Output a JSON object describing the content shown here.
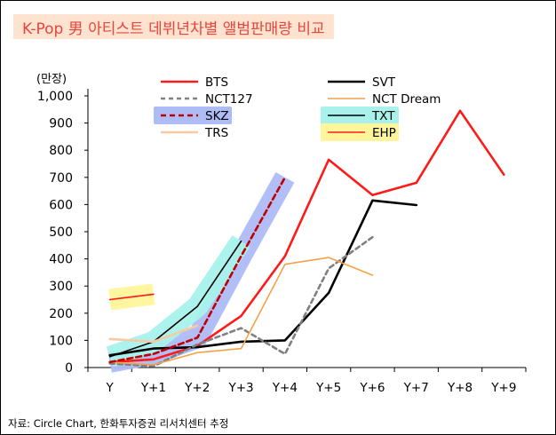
{
  "title": "K-Pop 男 아티스트 데뷔년차별 앨범판매량 비교",
  "source": "자료: Circle Chart, 한화투자증권 리서치센터 추정",
  "colors": {
    "title_bg": "#fde3d0",
    "title_text": "#e8453c",
    "highlight_blue": "#aebcf5",
    "highlight_cyan": "#a9f2ec",
    "highlight_yellow": "#fff59a"
  },
  "chart_data": {
    "type": "line",
    "unit": "(만장)",
    "categories": [
      "Y",
      "Y+1",
      "Y+2",
      "Y+3",
      "Y+4",
      "Y+5",
      "Y+6",
      "Y+7",
      "Y+8",
      "Y+9"
    ],
    "yticks": [
      "0",
      "100",
      "200",
      "300",
      "400",
      "500",
      "600",
      "700",
      "800",
      "900",
      "1,000"
    ],
    "ylim": [
      0,
      1000
    ],
    "grid": false,
    "legend_position": "top-left, two columns",
    "series": [
      {
        "name": "BTS",
        "color": "#ff1a1a",
        "width": 2.6,
        "dash": "",
        "values": [
          20,
          30,
          80,
          190,
          410,
          765,
          635,
          680,
          945,
          710
        ]
      },
      {
        "name": "SVT",
        "color": "#000000",
        "width": 2.6,
        "dash": "",
        "values": [
          45,
          70,
          75,
          95,
          100,
          275,
          615,
          598,
          null,
          null
        ]
      },
      {
        "name": "NCT127",
        "color": "#808080",
        "width": 2.6,
        "dash": "5,4",
        "values": [
          15,
          5,
          85,
          145,
          50,
          365,
          480,
          null,
          null,
          null
        ]
      },
      {
        "name": "NCT Dream",
        "color": "#f4a24a",
        "width": 1.6,
        "dash": "",
        "values": [
          20,
          10,
          55,
          70,
          380,
          405,
          340,
          null,
          null,
          null
        ]
      },
      {
        "name": "SKZ",
        "color": "#c00000",
        "width": 2.6,
        "dash": "6,4",
        "values": [
          20,
          50,
          110,
          410,
          700,
          null,
          null,
          null,
          null,
          null
        ],
        "highlight": "#aebcf5"
      },
      {
        "name": "TXT",
        "color": "#000000",
        "width": 1.6,
        "dash": "",
        "values": [
          40,
          95,
          225,
          465,
          null,
          null,
          null,
          null,
          null,
          null
        ],
        "highlight": "#a9f2ec"
      },
      {
        "name": "TRS",
        "color": "#f8c9a4",
        "width": 2.6,
        "dash": "",
        "values": [
          105,
          95,
          155,
          null,
          null,
          null,
          null,
          null,
          null,
          null
        ]
      },
      {
        "name": "EHP",
        "color": "#ff1a1a",
        "width": 1.6,
        "dash": "",
        "values": [
          250,
          270,
          null,
          null,
          null,
          null,
          null,
          null,
          null,
          null
        ],
        "highlight": "#fff59a"
      }
    ]
  }
}
